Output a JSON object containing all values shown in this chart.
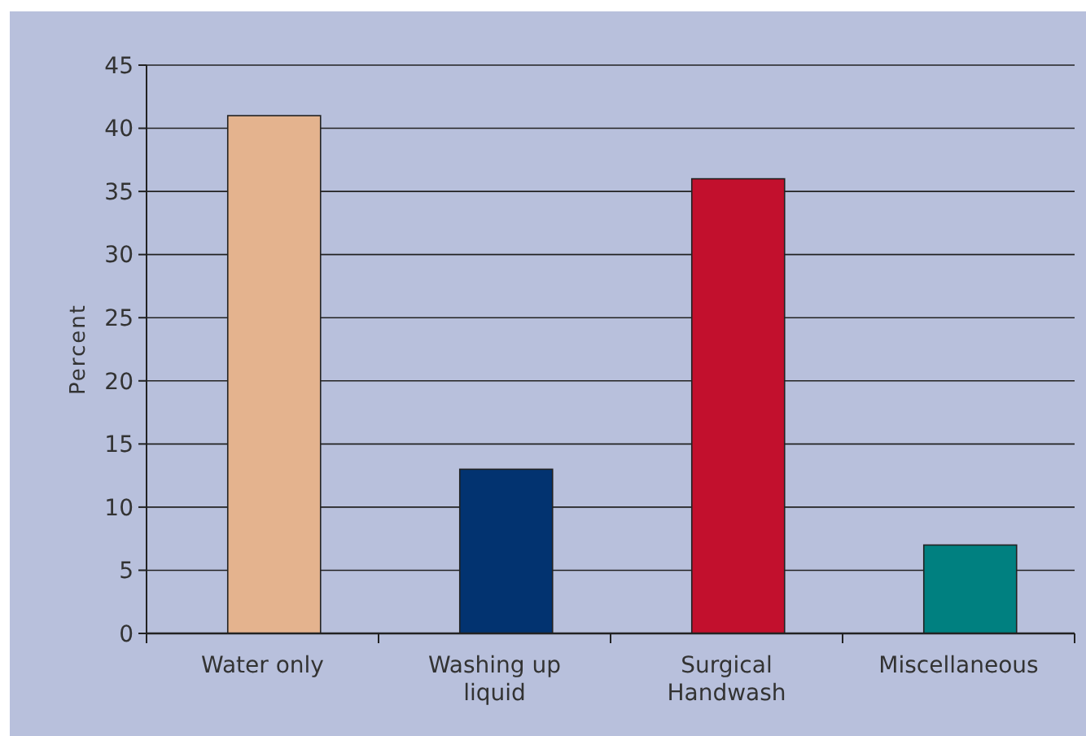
{
  "chart_data": {
    "type": "bar",
    "ylabel": "Percent",
    "categories": [
      "Water only",
      "Washing up liquid",
      "Surgical Handwash",
      "Miscellaneous"
    ],
    "values": [
      41,
      13,
      36,
      7
    ],
    "colors": [
      "#e4b38e",
      "#023370",
      "#c2102d",
      "#008080"
    ],
    "ylim": [
      0,
      45
    ],
    "yticks": [
      0,
      5,
      10,
      15,
      20,
      25,
      30,
      35,
      40,
      45
    ],
    "grid": "y"
  }
}
